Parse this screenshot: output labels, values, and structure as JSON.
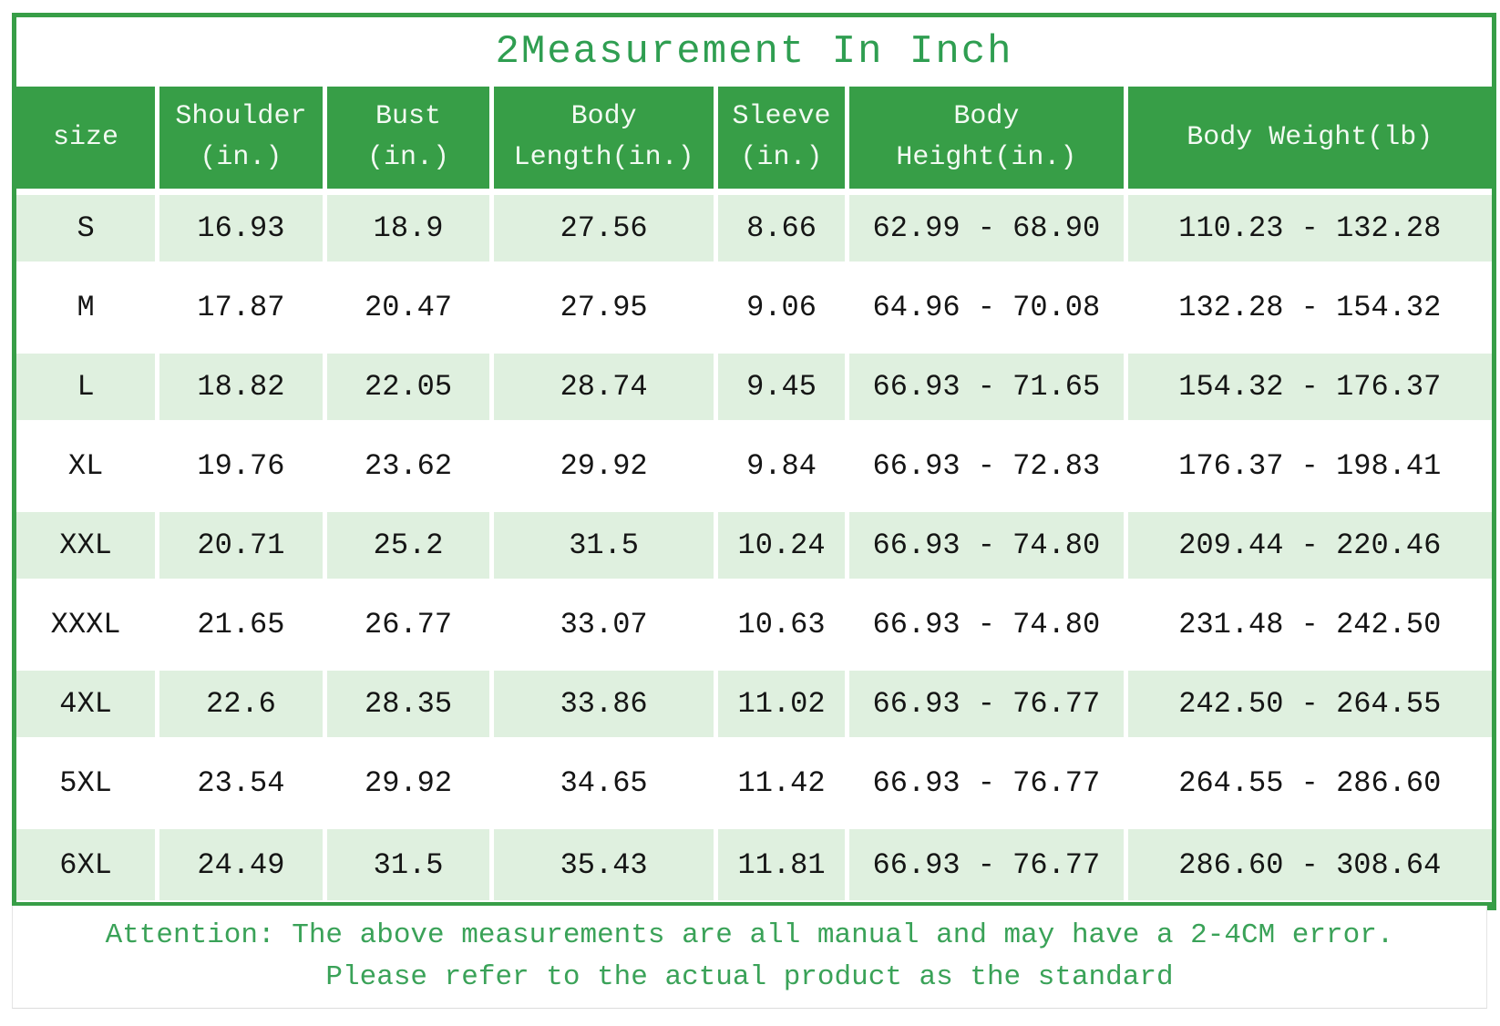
{
  "title": "2Measurement In Inch",
  "colors": {
    "table_green": "#379e47",
    "row_tint_green": "#dff0df",
    "title_text_green": "#2f9e51",
    "footer_text_green": "#3aa258",
    "header_text": "#f2faf2",
    "cell_text": "#151515"
  },
  "table": {
    "columns": [
      "size",
      "Shoulder\n(in.)",
      "Bust\n(in.)",
      "Body\nLength(in.)",
      "Sleeve\n(in.)",
      "Body\nHeight(in.)",
      "Body Weight(lb)"
    ],
    "rows": [
      [
        "S",
        "16.93",
        "18.9",
        "27.56",
        "8.66",
        "62.99 - 68.90",
        "110.23 - 132.28"
      ],
      [
        "M",
        "17.87",
        "20.47",
        "27.95",
        "9.06",
        "64.96 - 70.08",
        "132.28 - 154.32"
      ],
      [
        "L",
        "18.82",
        "22.05",
        "28.74",
        "9.45",
        "66.93 - 71.65",
        "154.32 - 176.37"
      ],
      [
        "XL",
        "19.76",
        "23.62",
        "29.92",
        "9.84",
        "66.93 - 72.83",
        "176.37 - 198.41"
      ],
      [
        "XXL",
        "20.71",
        "25.2",
        "31.5",
        "10.24",
        "66.93 - 74.80",
        "209.44 - 220.46"
      ],
      [
        "XXXL",
        "21.65",
        "26.77",
        "33.07",
        "10.63",
        "66.93 - 74.80",
        "231.48 - 242.50"
      ],
      [
        "4XL",
        "22.6",
        "28.35",
        "33.86",
        "11.02",
        "66.93 - 76.77",
        "242.50 - 264.55"
      ],
      [
        "5XL",
        "23.54",
        "29.92",
        "34.65",
        "11.42",
        "66.93 - 76.77",
        "264.55 - 286.60"
      ],
      [
        "6XL",
        "24.49",
        "31.5",
        "35.43",
        "11.81",
        "66.93 - 76.77",
        "286.60 - 308.64"
      ]
    ]
  },
  "footer": {
    "line1": "Attention: The above measurements are all manual and may have a 2-4CM error.",
    "line2": "Please refer to the actual product as the standard"
  }
}
